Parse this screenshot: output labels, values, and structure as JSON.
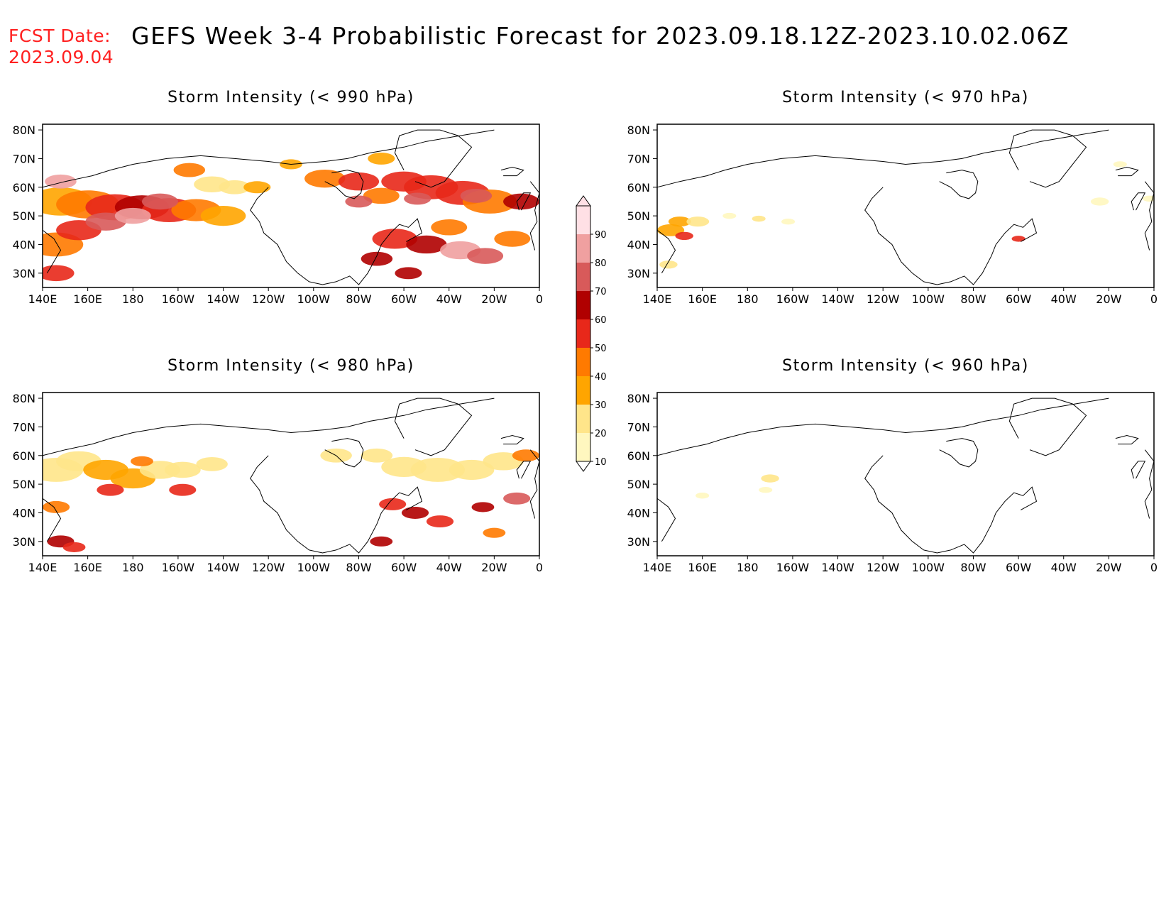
{
  "header": {
    "fcst_label": "FCST Date:",
    "fcst_date": "2023.09.04",
    "title": "GEFS Week 3-4 Probabilistic Forecast for 2023.09.18.12Z-2023.10.02.06Z"
  },
  "lat_ticks": [
    "80N",
    "70N",
    "60N",
    "50N",
    "40N",
    "30N"
  ],
  "lon_ticks": [
    "140E",
    "160E",
    "180",
    "160W",
    "140W",
    "120W",
    "100W",
    "80W",
    "60W",
    "40W",
    "20W",
    "0"
  ],
  "panels": [
    {
      "id": "p990",
      "title": "Storm Intensity (< 990 hPa)",
      "coverage": "high"
    },
    {
      "id": "p970",
      "title": "Storm Intensity (< 970 hPa)",
      "coverage": "sparse"
    },
    {
      "id": "p980",
      "title": "Storm Intensity (< 980 hPa)",
      "coverage": "medium"
    },
    {
      "id": "p960",
      "title": "Storm Intensity (< 960 hPa)",
      "coverage": "minimal"
    }
  ],
  "colorbar": {
    "levels": [
      "10",
      "20",
      "30",
      "40",
      "50",
      "60",
      "70",
      "80",
      "90"
    ],
    "colors": [
      "#fff7bf",
      "#ffe58a",
      "#ffa500",
      "#ff7a00",
      "#e8281a",
      "#b00000",
      "#d85a5a",
      "#f0a0a0",
      "#ffe0e5"
    ]
  },
  "colors": {
    "header_red": "#ff2020",
    "coast": "#000000"
  }
}
